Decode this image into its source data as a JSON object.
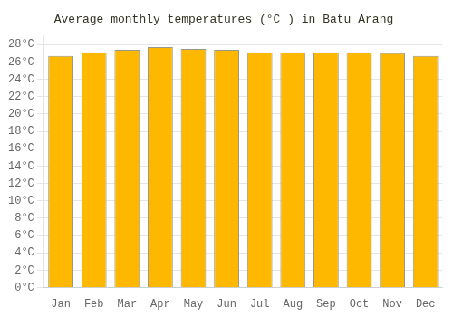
{
  "chart_data": {
    "type": "bar",
    "title": "Average monthly temperatures (°C ) in Batu Arang",
    "categories": [
      "Jan",
      "Feb",
      "Mar",
      "Apr",
      "May",
      "Jun",
      "Jul",
      "Aug",
      "Sep",
      "Oct",
      "Nov",
      "Dec"
    ],
    "values": [
      26.7,
      27.1,
      27.4,
      27.7,
      27.5,
      27.4,
      27.1,
      27.1,
      27.1,
      27.1,
      27.0,
      26.7
    ],
    "color": "#FFB800",
    "ylim": [
      0,
      29
    ],
    "yticks": [
      {
        "value": 0,
        "label": "0°C"
      },
      {
        "value": 2,
        "label": "2°C"
      },
      {
        "value": 4,
        "label": "4°C"
      },
      {
        "value": 6,
        "label": "6°C"
      },
      {
        "value": 8,
        "label": "8°C"
      },
      {
        "value": 10,
        "label": "10°C"
      },
      {
        "value": 12,
        "label": "12°C"
      },
      {
        "value": 14,
        "label": "14°C"
      },
      {
        "value": 16,
        "label": "16°C"
      },
      {
        "value": 18,
        "label": "18°C"
      },
      {
        "value": 20,
        "label": "20°C"
      },
      {
        "value": 22,
        "label": "22°C"
      },
      {
        "value": 24,
        "label": "24°C"
      },
      {
        "value": 26,
        "label": "26°C"
      },
      {
        "value": 28,
        "label": "28°C"
      }
    ],
    "grid": true
  }
}
